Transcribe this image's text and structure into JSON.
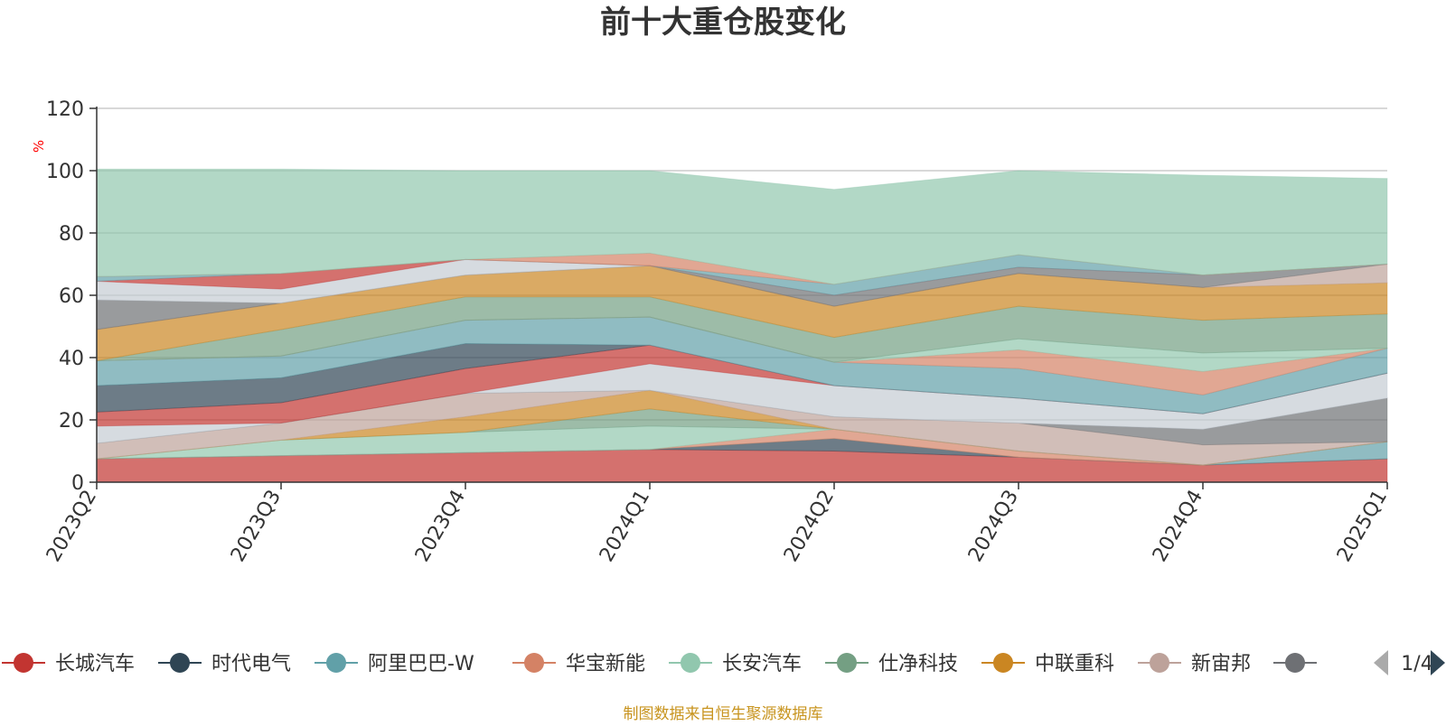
{
  "chart_data": {
    "type": "area",
    "title": "前十大重仓股变化",
    "ylabel": "%",
    "xlabel": "",
    "ylim": [
      0,
      120
    ],
    "yticks": [
      0,
      20,
      40,
      60,
      80,
      100,
      120
    ],
    "grid": true,
    "stacked": true,
    "categories": [
      "2023Q2",
      "2023Q3",
      "2023Q4",
      "2024Q1",
      "2024Q2",
      "2024Q3",
      "2024Q4",
      "2025Q1"
    ],
    "series": [
      {
        "name": "长城汽车",
        "color": "#c23531",
        "values": [
          7.5,
          8.5,
          9.5,
          10.5,
          10,
          8,
          5.5,
          7.5
        ]
      },
      {
        "name": "时代电气",
        "color": "#2f4554",
        "values": [
          0,
          0,
          0,
          0,
          4,
          0,
          0,
          0
        ]
      },
      {
        "name": "阿里巴巴-W",
        "color": "#61a0a8",
        "values": [
          0,
          0,
          0,
          0,
          0,
          0,
          0,
          5.5
        ]
      },
      {
        "name": "华宝新能",
        "color": "#d48265",
        "values": [
          0,
          0,
          0,
          0,
          3,
          2,
          0,
          0
        ]
      },
      {
        "name": "长安汽车",
        "color": "#91c7ae",
        "values": [
          0,
          5,
          6.5,
          7.5,
          0,
          0,
          0,
          0
        ]
      },
      {
        "name": "仕净科技",
        "color": "#749f83",
        "values": [
          0,
          0,
          0,
          5.5,
          0,
          0,
          0,
          0
        ]
      },
      {
        "name": "中联重科",
        "color": "#ca8622",
        "values": [
          0,
          0,
          5,
          6,
          0,
          0,
          0,
          0
        ]
      },
      {
        "name": "新宙邦",
        "color": "#bda29a",
        "values": [
          5,
          5.5,
          7.5,
          0,
          4,
          9,
          6.5,
          0
        ]
      },
      {
        "name": "",
        "color": "#6e7074",
        "values": [
          0,
          0,
          0,
          0,
          0,
          0,
          5,
          14
        ]
      },
      {
        "name": "",
        "color": "#c4ccd3",
        "values": [
          5.5,
          0,
          0,
          8.5,
          10,
          8,
          5,
          8
        ]
      },
      {
        "name": "",
        "color": "#c23531",
        "values": [
          4.5,
          6.5,
          8,
          6,
          0,
          0,
          0,
          0
        ]
      },
      {
        "name": "",
        "color": "#2f4554",
        "values": [
          8.5,
          8,
          8,
          0,
          0,
          0,
          0,
          0
        ]
      },
      {
        "name": "",
        "color": "#61a0a8",
        "values": [
          8,
          7,
          7.5,
          9,
          7.5,
          9.5,
          6,
          8
        ]
      },
      {
        "name": "",
        "color": "#d48265",
        "values": [
          0,
          0,
          0,
          0,
          0,
          6,
          7.5,
          0
        ]
      },
      {
        "name": "",
        "color": "#91c7ae",
        "values": [
          0,
          0,
          0,
          0,
          0,
          3.5,
          6,
          0
        ]
      },
      {
        "name": "",
        "color": "#749f83",
        "values": [
          0,
          8.5,
          7.5,
          6.5,
          8,
          10.5,
          10.5,
          11
        ]
      },
      {
        "name": "",
        "color": "#ca8622",
        "values": [
          10,
          8.5,
          7,
          10,
          10,
          10.5,
          10.5,
          10
        ]
      },
      {
        "name": "",
        "color": "#bda29a",
        "values": [
          0,
          0,
          0,
          0,
          0,
          0,
          0,
          6
        ]
      },
      {
        "name": "",
        "color": "#6e7074",
        "values": [
          9.5,
          0,
          0,
          0,
          3.5,
          2,
          4,
          0
        ]
      },
      {
        "name": "",
        "color": "#c4ccd3",
        "values": [
          6,
          4.5,
          5,
          0,
          0,
          0,
          0,
          0
        ]
      },
      {
        "name": "",
        "color": "#c23531",
        "values": [
          0,
          5,
          0,
          0,
          0,
          0,
          0,
          0
        ]
      },
      {
        "name": "",
        "color": "#61a0a8",
        "values": [
          1.5,
          0,
          0,
          0,
          3.5,
          4,
          0,
          0
        ]
      },
      {
        "name": "",
        "color": "#d48265",
        "values": [
          0,
          0,
          0,
          4,
          0,
          0,
          0,
          0
        ]
      },
      {
        "name": "",
        "color": "#91c7ae",
        "values": [
          34.5,
          33.5,
          28.5,
          26.5,
          30.5,
          27,
          32,
          27.5
        ]
      }
    ]
  },
  "legend": {
    "visible_items": [
      "长城汽车",
      "时代电气",
      "阿里巴巴-W",
      "华宝新能",
      "长安汽车",
      "仕净科技",
      "中联重科",
      "新宙邦",
      ""
    ],
    "page_indicator": "1/4",
    "prev_icon": "triangle-left-icon",
    "next_icon": "triangle-right-icon"
  },
  "footer": {
    "source": "制图数据来自恒生聚源数据库"
  },
  "colors": {
    "title": "#333333",
    "axis": "#333333",
    "grid": "#cccccc",
    "unit": "#ff0000",
    "source": "#c8941f",
    "pager_active": "#2f4554",
    "pager_inactive": "#aaaaaa"
  }
}
